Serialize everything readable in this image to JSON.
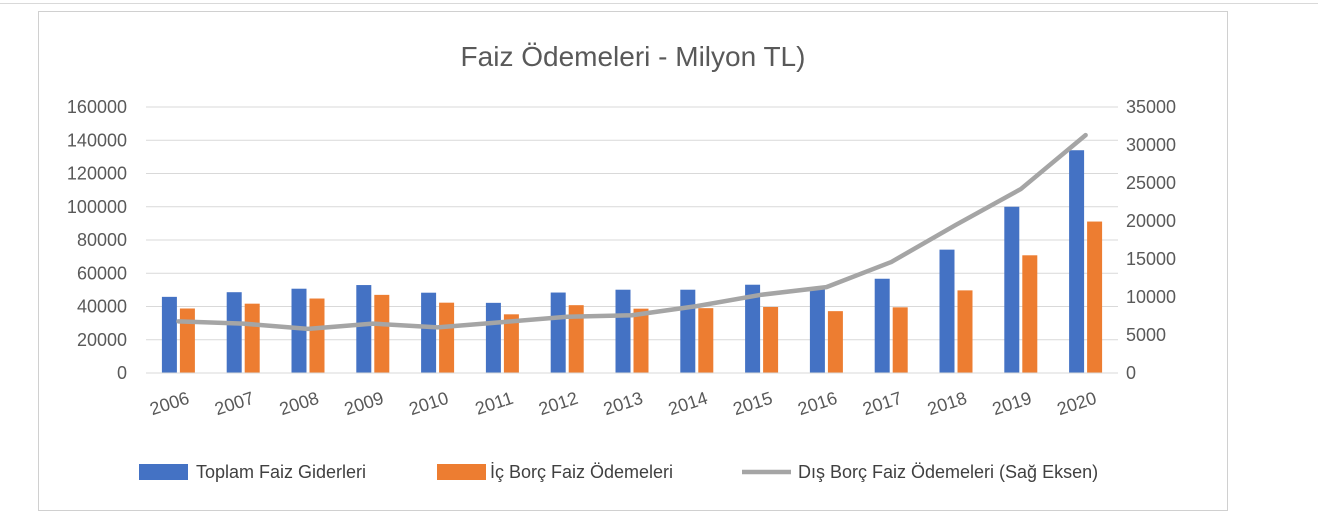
{
  "chart_data": {
    "type": "bar",
    "title": "Faiz Ödemeleri - Milyon TL)",
    "categories": [
      "2006",
      "2007",
      "2008",
      "2009",
      "2010",
      "2011",
      "2012",
      "2013",
      "2014",
      "2015",
      "2016",
      "2017",
      "2018",
      "2019",
      "2020"
    ],
    "ylim": [
      0,
      160000
    ],
    "y2lim": [
      0,
      35000
    ],
    "y_ticks": [
      "0",
      "20000",
      "40000",
      "60000",
      "80000",
      "100000",
      "120000",
      "140000",
      "160000"
    ],
    "y2_ticks": [
      "0",
      "5000",
      "10000",
      "15000",
      "20000",
      "25000",
      "30000",
      "35000"
    ],
    "grid": true,
    "legend_position": "bottom",
    "series": [
      {
        "name": "Toplam Faiz Giderleri",
        "kind": "bar",
        "axis": "left",
        "color": "#4472c4",
        "values": [
          45800,
          48600,
          50700,
          52900,
          48300,
          42200,
          48400,
          50100,
          50100,
          53100,
          50300,
          56700,
          74200,
          100000,
          134000
        ]
      },
      {
        "name": "İç Borç Faiz Ödemeleri",
        "kind": "bar",
        "axis": "left",
        "color": "#ed7d31",
        "values": [
          38800,
          41700,
          44800,
          47000,
          42300,
          35300,
          40800,
          38700,
          39000,
          39700,
          37200,
          39500,
          49700,
          70800,
          91100
        ]
      },
      {
        "name": "Dış Borç Faiz Ödemeleri (Sağ Eksen)",
        "kind": "line",
        "axis": "right",
        "color": "#a5a5a5",
        "values": [
          6800,
          6500,
          5800,
          6500,
          6000,
          6700,
          7400,
          7600,
          8800,
          10300,
          11300,
          14600,
          19500,
          24200,
          31300
        ]
      }
    ]
  }
}
